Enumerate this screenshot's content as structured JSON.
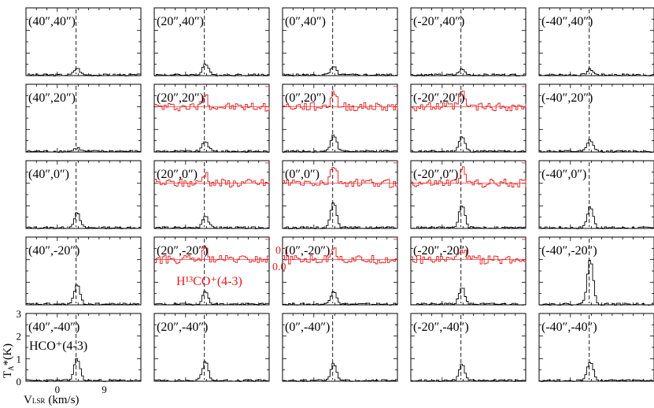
{
  "chart_data": {
    "type": "line",
    "title": "",
    "layout": "5x5 grid of spectra",
    "xlabel": {
      "main": "V",
      "sub": "LSR",
      "unit": "(km/s)"
    },
    "ylabel": {
      "main": "T",
      "sub": "A",
      "unit": "*(K)"
    },
    "x_tick_labels": [
      "0",
      "9"
    ],
    "y_tick_labels": [
      "0",
      "1",
      "2",
      "3"
    ],
    "xlim": [
      -6,
      16
    ],
    "ylim": [
      0,
      3
    ],
    "systemic_velocity": 3.6,
    "line_labels": {
      "black": "HCO⁺(4-3)",
      "red": "H¹³CO⁺(4-3)"
    },
    "red_scale_labels": [
      "0.1",
      "0.0"
    ],
    "grid": false,
    "colors": {
      "hco": "#000000",
      "h13co": "#e41b1b",
      "axes": "#000000",
      "dashed": "#000000"
    },
    "panels": [
      {
        "offset": "(40″,40″)",
        "peak": 0.3,
        "red": null
      },
      {
        "offset": "(20″,40″)",
        "peak": 0.5,
        "red": null
      },
      {
        "offset": "(0″,40″)",
        "peak": 0.35,
        "red": null
      },
      {
        "offset": "(-20″,40″)",
        "peak": 0.25,
        "red": null
      },
      {
        "offset": "(-40″,40″)",
        "peak": 0.25,
        "red": null
      },
      {
        "offset": "(40″,20″)",
        "peak": 0.15,
        "red": null
      },
      {
        "offset": "(20″,20″)",
        "peak": 0.45,
        "red": 0.06
      },
      {
        "offset": "(0″,20″)",
        "peak": 0.75,
        "red": 0.08
      },
      {
        "offset": "(-20″,20″)",
        "peak": 0.65,
        "red": 0.07
      },
      {
        "offset": "(-40″,20″)",
        "peak": 0.5,
        "red": null
      },
      {
        "offset": "(40″,0″)",
        "peak": 0.65,
        "red": null
      },
      {
        "offset": "(20″,0″)",
        "peak": 0.55,
        "red": 0.05
      },
      {
        "offset": "(0″,0″)",
        "peak": 1.15,
        "red": 0.09
      },
      {
        "offset": "(-20″,0″)",
        "peak": 1.0,
        "red": 0.07
      },
      {
        "offset": "(-40″,0″)",
        "peak": 0.95,
        "red": null
      },
      {
        "offset": "(40″,-20″)",
        "peak": 0.85,
        "red": null
      },
      {
        "offset": "(20″,-20″)",
        "peak": 0.55,
        "red": 0.05
      },
      {
        "offset": "(0″,-20″)",
        "peak": 0.6,
        "red": 0.07
      },
      {
        "offset": "(-20″,-20″)",
        "peak": 0.75,
        "red": 0.06
      },
      {
        "offset": "(-40″,-20″)",
        "peak": 2.0,
        "red": null
      },
      {
        "offset": "(40″,-40″)",
        "peak": 1.0,
        "red": null
      },
      {
        "offset": "(20″,-40″)",
        "peak": 0.85,
        "red": null
      },
      {
        "offset": "(0″,-40″)",
        "peak": 0.75,
        "red": null
      },
      {
        "offset": "(-20″,-40″)",
        "peak": 0.7,
        "red": null
      },
      {
        "offset": "(-40″,-40″)",
        "peak": 0.85,
        "red": null
      }
    ]
  }
}
